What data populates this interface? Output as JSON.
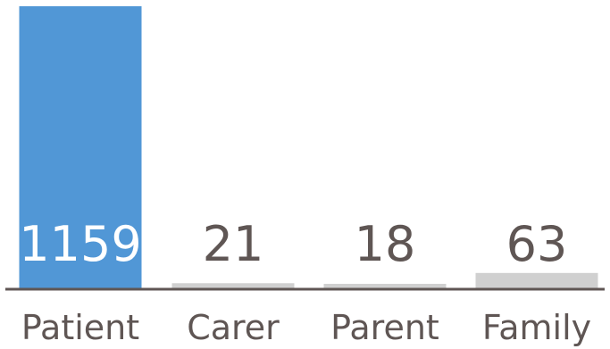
{
  "chart_data": {
    "type": "bar",
    "categories": [
      "Patient",
      "Carer",
      "Parent",
      "Family"
    ],
    "values": [
      1159,
      21,
      18,
      63
    ],
    "value_labels": [
      "1159",
      "21",
      "18",
      "63"
    ],
    "title": "",
    "xlabel": "",
    "ylabel": "",
    "ylim": [
      0,
      1159
    ],
    "grid": false,
    "legend": "none",
    "colors": {
      "highlight_bar": "#5197d6",
      "other_bar": "#d0d0d0",
      "axis": "#5f5654",
      "label_text": "#5f5654",
      "highlight_label_text": "#ffffff"
    }
  }
}
